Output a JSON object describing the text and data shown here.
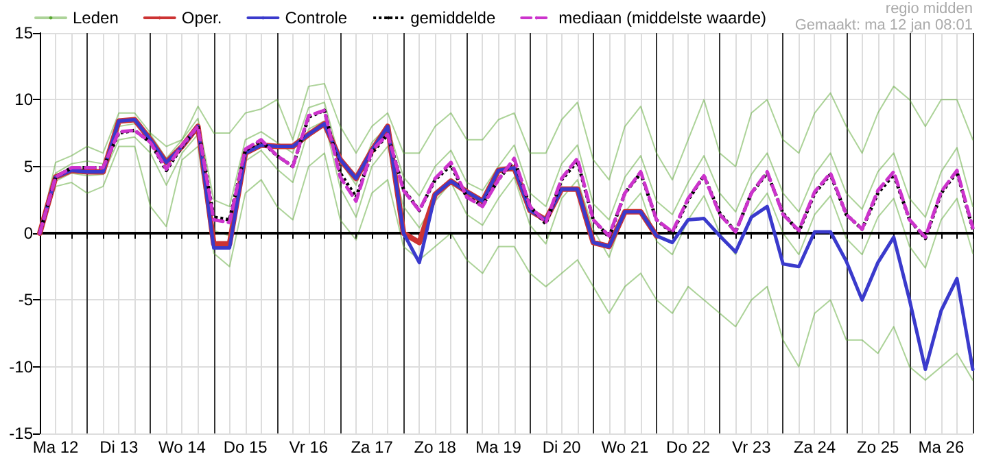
{
  "chart_data": {
    "type": "line",
    "categories": [
      null,
      "Ma 12",
      null,
      null,
      null,
      "Di 13",
      null,
      null,
      null,
      "Wo 14",
      null,
      null,
      null,
      "Do 15",
      null,
      null,
      null,
      "Vr 16",
      null,
      null,
      null,
      "Za 17",
      null,
      null,
      null,
      "Zo 18",
      null,
      null,
      null,
      "Ma 19",
      null,
      null,
      null,
      "Di 20",
      null,
      null,
      null,
      "Wo 21",
      null,
      null,
      null,
      "Do 22",
      null,
      null,
      null,
      "Vr 23",
      null,
      null,
      null,
      "Za 24",
      null,
      null,
      null,
      "Zo 25",
      null,
      null,
      null,
      "Ma 26",
      null,
      null
    ],
    "series": [
      {
        "name": "Leden",
        "color": "#5aa832",
        "line_style": "solid",
        "values": [
          0,
          5.3,
          5.8,
          6.5,
          6,
          9,
          9,
          7.5,
          6.5,
          7,
          9.5,
          7.5,
          7.5,
          9,
          9.3,
          10,
          7,
          11,
          11.2,
          8,
          6,
          8,
          9,
          6,
          6,
          8,
          9,
          7,
          7,
          8.5,
          9,
          6,
          6,
          8.5,
          9.8,
          5.5,
          4,
          8,
          9.5,
          6,
          4,
          7,
          10,
          6,
          5,
          9,
          10,
          7,
          6,
          9,
          10.5,
          8,
          6,
          9,
          11,
          10,
          8,
          10,
          10,
          7
        ]
      },
      {
        "color": "#5aa832",
        "line_style": "solid",
        "values": [
          0,
          3.5,
          3.8,
          3,
          3.5,
          6.5,
          6.5,
          2,
          0.5,
          5.5,
          6.5,
          -1.5,
          -2.5,
          3,
          4,
          2,
          1,
          5,
          6,
          1,
          -0.5,
          3,
          4,
          -1,
          -2,
          -1,
          0,
          -2,
          -3,
          -1,
          -1,
          -3,
          -4,
          -3,
          -2,
          -4,
          -6,
          -4,
          -3,
          -5,
          -6,
          -4,
          -5,
          -6,
          -7,
          -5,
          -4,
          -8,
          -10,
          -6,
          -5,
          -8,
          -8,
          -9,
          -7,
          -10,
          -11,
          -10,
          -9,
          -11
        ]
      },
      {
        "color": "#5aa832",
        "line_style": "solid",
        "values": [
          0,
          4.5,
          5.2,
          5.4,
          5.2,
          8,
          8.2,
          7.4,
          5.6,
          7,
          8.6,
          2.5,
          2,
          7,
          7.6,
          6.8,
          6,
          9.4,
          9.8,
          5.4,
          3.6,
          6.8,
          8,
          4.2,
          2.8,
          5,
          6.2,
          3.8,
          3.2,
          5,
          6.6,
          3,
          2,
          5.2,
          6.6,
          2.2,
          1,
          4.2,
          5.8,
          2.4,
          1.4,
          3.8,
          5.8,
          3,
          1.6,
          4.4,
          6,
          3,
          1.6,
          4.4,
          6,
          3,
          1.8,
          4.6,
          6,
          2.6,
          1.2,
          4.6,
          6.4,
          2
        ]
      },
      {
        "color": "#5aa832",
        "line_style": "solid",
        "values": [
          0,
          3.9,
          4.5,
          4.3,
          4.4,
          7,
          7.2,
          6,
          3.6,
          6,
          7.4,
          0.2,
          -0.2,
          5.4,
          6.2,
          4.8,
          3.8,
          7.8,
          8.4,
          3.4,
          1.2,
          5,
          6.5,
          2,
          0.4,
          2.4,
          3.8,
          1.4,
          0.6,
          2.6,
          4.2,
          0.6,
          -0.8,
          2.6,
          4,
          0.3,
          -1.8,
          1.6,
          3,
          -0.6,
          -1.6,
          1,
          2.8,
          0,
          -1.6,
          1.4,
          3,
          0,
          -1.6,
          1.4,
          2.8,
          -0.4,
          -1.6,
          1.2,
          2.6,
          -1,
          -2.6,
          1,
          2.6,
          -1.5
        ]
      },
      {
        "name": "Oper.",
        "color": "#cc3333",
        "line_style": "solid",
        "values": [
          0,
          4.2,
          4.7,
          4.6,
          4.6,
          8.4,
          8.5,
          7,
          5.3,
          6.5,
          8,
          -0.8,
          -0.8,
          6,
          6.6,
          6.5,
          6.5,
          7.4,
          8.2,
          5.5,
          4.1,
          6.2,
          8,
          0,
          -0.7,
          2.9,
          3.9,
          3.1,
          2.4,
          4.7,
          4.9,
          1.7,
          1,
          3.3,
          3.3,
          -0.7,
          -1,
          1.6,
          1.6,
          -0.2,
          null,
          null,
          null,
          null,
          null,
          null,
          null,
          null,
          null,
          null,
          null,
          null,
          null,
          null,
          null,
          null,
          null,
          null,
          null,
          null
        ]
      },
      {
        "name": "Controle",
        "color": "#3a3acc",
        "line_style": "solid",
        "values": [
          0,
          4.2,
          4.7,
          4.6,
          4.6,
          8.4,
          8.5,
          7,
          5.3,
          6.5,
          8,
          -1.1,
          -1.1,
          6,
          6.6,
          6.5,
          6.5,
          7.4,
          8.2,
          5.5,
          4.1,
          6.2,
          8,
          0,
          -2.2,
          2.9,
          3.9,
          3.1,
          2.4,
          4.7,
          4.9,
          1.7,
          1,
          3.3,
          3.3,
          -0.7,
          -1,
          1.6,
          1.6,
          -0.2,
          -0.7,
          1,
          1.1,
          -0.2,
          -1.4,
          1.2,
          2,
          -2.3,
          -2.5,
          0.1,
          0.1,
          -2.1,
          -5,
          -2.2,
          -0.3,
          -5,
          -10.2,
          -5.8,
          -3.4,
          -10.2
        ]
      },
      {
        "name": "gemiddelde",
        "color": "#000000",
        "line_style": "dotted",
        "values": [
          0,
          4.2,
          4.9,
          4.9,
          4.9,
          7.5,
          7.7,
          6.8,
          4.7,
          6.5,
          8,
          1.2,
          1,
          6.2,
          6.9,
          5.8,
          5,
          8.7,
          9.2,
          4.5,
          2.7,
          6,
          7.4,
          3.3,
          1.7,
          4,
          5.1,
          2.7,
          2.1,
          4,
          5.5,
          2,
          0.7,
          4,
          5.4,
          1,
          -0.3,
          3,
          4.5,
          1,
          0,
          2.5,
          4.3,
          1.5,
          0.1,
          3,
          4.5,
          1.5,
          0.1,
          3,
          4.4,
          1.4,
          0.3,
          3,
          4.4,
          1,
          -0.4,
          3,
          4.6,
          0.3
        ]
      },
      {
        "name": "mediaan (middelste waarde)",
        "color": "#cc33cc",
        "line_style": "dashed",
        "values": [
          0,
          4.2,
          4.9,
          4.9,
          4.9,
          7.6,
          7.7,
          6.8,
          4.8,
          6.6,
          8,
          1,
          0.8,
          6.3,
          7,
          5.8,
          5,
          8.8,
          9.2,
          4.2,
          2.4,
          6.2,
          7.4,
          3.2,
          1.7,
          4.1,
          5.3,
          2.7,
          2,
          4,
          5.6,
          2,
          0.8,
          4.1,
          5.6,
          1,
          -0.2,
          3,
          4.6,
          1,
          0.1,
          2.6,
          4.3,
          1.4,
          0.1,
          3,
          4.6,
          1.4,
          0.2,
          3.1,
          4.5,
          1.4,
          0.3,
          3.2,
          4.6,
          1,
          -0.3,
          3.1,
          4.7,
          0.4
        ]
      }
    ],
    "ylim": [
      -15,
      15
    ],
    "yticks": [
      -15,
      -10,
      -5,
      0,
      5,
      10,
      15
    ],
    "grid": true,
    "legend": "top",
    "marker": "none",
    "ref_lines": [
      {
        "axis": "y",
        "value": 0,
        "color": "#000000"
      }
    ],
    "annotations": [
      "regio midden",
      "Gemaakt: ma 12 jan 08:01"
    ]
  }
}
